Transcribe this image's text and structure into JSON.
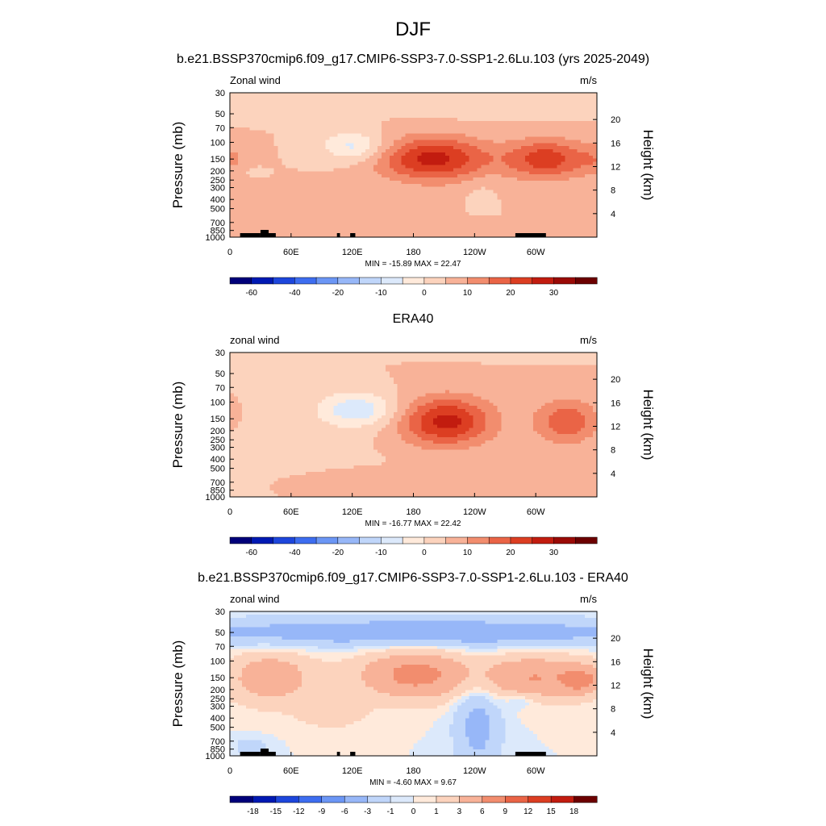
{
  "page_title": "DJF",
  "palettes": {
    "full": [
      "#00007a",
      "#0019b3",
      "#1d46dc",
      "#3d6df0",
      "#6b96f5",
      "#97b7f8",
      "#c0d6fa",
      "#dce9fb",
      "#ffeadb",
      "#fcd3bd",
      "#f8b298",
      "#f28d6e",
      "#ea6446",
      "#dc3e22",
      "#c21c0f",
      "#9a0a06",
      "#6c0000"
    ],
    "diff": [
      "#00007a",
      "#0019b3",
      "#1d46dc",
      "#3d6df0",
      "#6b96f5",
      "#97b7f8",
      "#c0d6fa",
      "#dce9fb",
      "#ffeadb",
      "#fcd3bd",
      "#f8b298",
      "#f28d6e",
      "#ea6446",
      "#dc3e22",
      "#c21c0f",
      "#6c0000"
    ]
  },
  "axes": {
    "x_ticks": [
      "0",
      "60E",
      "120E",
      "180",
      "120W",
      "60W"
    ],
    "x_tick_lon": [
      0,
      60,
      120,
      180,
      240,
      300
    ],
    "x_range": [
      0,
      360
    ],
    "p_ticks": [
      "30",
      "50",
      "70",
      "100",
      "150",
      "200",
      "250",
      "300",
      "400",
      "500",
      "700",
      "850",
      "1000"
    ],
    "p_values": [
      30,
      50,
      70,
      100,
      150,
      200,
      250,
      300,
      400,
      500,
      700,
      850,
      1000
    ],
    "p_range": [
      30,
      1000
    ],
    "p_scale": "log",
    "h_ticks": [
      "4",
      "8",
      "12",
      "16",
      "20"
    ],
    "h_values": [
      4,
      8,
      12,
      16,
      20
    ],
    "ylabel": "Pressure (mb)",
    "ylabel_right": "Height (km)"
  },
  "panels": [
    {
      "title": "b.e21.BSSP370cmip6.f09_g17.CMIP6-SSP3-7.0-SSP1-2.6Lu.103 (yrs 2025-2049)",
      "left_label": "Zonal wind",
      "units": "m/s",
      "minmax": "MIN = -15.89  MAX =  22.47",
      "cb_labels": [
        "-60",
        "-40",
        "-20",
        "-10",
        "0",
        "10",
        "20",
        "30"
      ],
      "cb_label_bounds": [
        1,
        3,
        5,
        7,
        9,
        11,
        13,
        15
      ],
      "palette": "full",
      "topo": true
    },
    {
      "title": "ERA40",
      "left_label": "zonal wind",
      "units": "m/s",
      "minmax": "MIN = -16.77  MAX =  22.42",
      "cb_labels": [
        "-60",
        "-40",
        "-20",
        "-10",
        "0",
        "10",
        "20",
        "30"
      ],
      "cb_label_bounds": [
        1,
        3,
        5,
        7,
        9,
        11,
        13,
        15
      ],
      "palette": "full",
      "topo": false
    },
    {
      "title": "b.e21.BSSP370cmip6.f09_g17.CMIP6-SSP3-7.0-SSP1-2.6Lu.103 - ERA40",
      "left_label": "zonal wind",
      "units": "m/s",
      "minmax": "MIN =  -4.60  MAX =   9.67",
      "cb_labels": [
        "-18",
        "-15",
        "-12",
        "-9",
        "-6",
        "-3",
        "-1",
        "0",
        "1",
        "3",
        "6",
        "9",
        "12",
        "15",
        "18"
      ],
      "cb_label_bounds": [
        1,
        2,
        3,
        4,
        5,
        6,
        7,
        8,
        9,
        10,
        11,
        12,
        13,
        14,
        15
      ],
      "palette": "diff",
      "topo": true
    }
  ],
  "chart_data": [
    {
      "type": "heatmap",
      "title": "b.e21.BSSP370cmip6.f09_g17.CMIP6-SSP3-7.0-SSP1-2.6Lu.103 (yrs 2025-2049)",
      "variable": "Zonal wind",
      "units": "m/s",
      "x_axis": "longitude",
      "y_axis": "Pressure (mb)",
      "min": -15.89,
      "max": 22.47,
      "features": [
        {
          "lon": 122,
          "p": 110,
          "value": -12,
          "sx": 22,
          "sy": 0.25
        },
        {
          "lon": 200,
          "p": 150,
          "value": 22,
          "sx": 38,
          "sy": 0.38
        },
        {
          "lon": 310,
          "p": 150,
          "value": 18,
          "sx": 28,
          "sy": 0.34
        },
        {
          "lon": 0,
          "p": 150,
          "value": 6,
          "sx": 14,
          "sy": 0.3
        },
        {
          "lon": 360,
          "p": 150,
          "value": 6,
          "sx": 14,
          "sy": 0.3
        },
        {
          "lon": 250,
          "p": 35,
          "value": -3,
          "sx": 70,
          "sy": 0.3
        },
        {
          "lon": 30,
          "p": 50,
          "value": -2,
          "sx": 25,
          "sy": 0.15
        },
        {
          "lon": 120,
          "p": 800,
          "value": 5,
          "sx": 45,
          "sy": 0.18
        },
        {
          "lon": 335,
          "p": 850,
          "value": 3,
          "sx": 25,
          "sy": 0.12
        },
        {
          "lon": 20,
          "p": 200,
          "value": -2,
          "sx": 8,
          "sy": 0.1
        },
        {
          "lon": 245,
          "p": 300,
          "value": -2,
          "sx": 12,
          "sy": 0.25
        }
      ]
    },
    {
      "type": "heatmap",
      "title": "ERA40",
      "variable": "zonal wind",
      "units": "m/s",
      "x_axis": "longitude",
      "y_axis": "Pressure (mb)",
      "min": -16.77,
      "max": 22.42,
      "features": [
        {
          "lon": 125,
          "p": 120,
          "value": -14,
          "sx": 28,
          "sy": 0.3
        },
        {
          "lon": 55,
          "p": 350,
          "value": -2,
          "sx": 55,
          "sy": 0.5
        },
        {
          "lon": 212,
          "p": 160,
          "value": 22,
          "sx": 32,
          "sy": 0.42
        },
        {
          "lon": 330,
          "p": 160,
          "value": 14,
          "sx": 22,
          "sy": 0.38
        },
        {
          "lon": 0,
          "p": 150,
          "value": 3,
          "sx": 5,
          "sy": 0.2
        },
        {
          "lon": 120,
          "p": 700,
          "value": 4,
          "sx": 42,
          "sy": 0.2
        },
        {
          "lon": 300,
          "p": 850,
          "value": 4,
          "sx": 50,
          "sy": 0.14
        },
        {
          "lon": 240,
          "p": 30,
          "value": -1.5,
          "sx": 70,
          "sy": 0.1
        }
      ]
    },
    {
      "type": "heatmap",
      "title": "b.e21.BSSP370cmip6.f09_g17.CMIP6-SSP3-7.0-SSP1-2.6Lu.103 - ERA40",
      "variable": "zonal wind",
      "units": "m/s",
      "x_axis": "longitude",
      "y_axis": "Pressure (mb)",
      "min": -4.6,
      "max": 9.67,
      "features": [
        {
          "lon": 180,
          "p": 50,
          "value": -5,
          "sx": 200,
          "sy": 0.25
        },
        {
          "lon": 180,
          "p": 140,
          "value": 7,
          "sx": 38,
          "sy": 0.42
        },
        {
          "lon": 40,
          "p": 150,
          "value": 5,
          "sx": 30,
          "sy": 0.45
        },
        {
          "lon": 300,
          "p": 150,
          "value": 6,
          "sx": 45,
          "sy": 0.38
        },
        {
          "lon": 345,
          "p": 160,
          "value": 5,
          "sx": 12,
          "sy": 0.2
        },
        {
          "lon": 243,
          "p": 450,
          "value": -4,
          "sx": 16,
          "sy": 0.9
        },
        {
          "lon": 100,
          "p": 350,
          "value": 2,
          "sx": 25,
          "sy": 0.3
        },
        {
          "lon": 20,
          "p": 800,
          "value": -2,
          "sx": 12,
          "sy": 0.15
        },
        {
          "lon": 285,
          "p": 260,
          "value": -2,
          "sx": 12,
          "sy": 0.15
        }
      ]
    }
  ]
}
